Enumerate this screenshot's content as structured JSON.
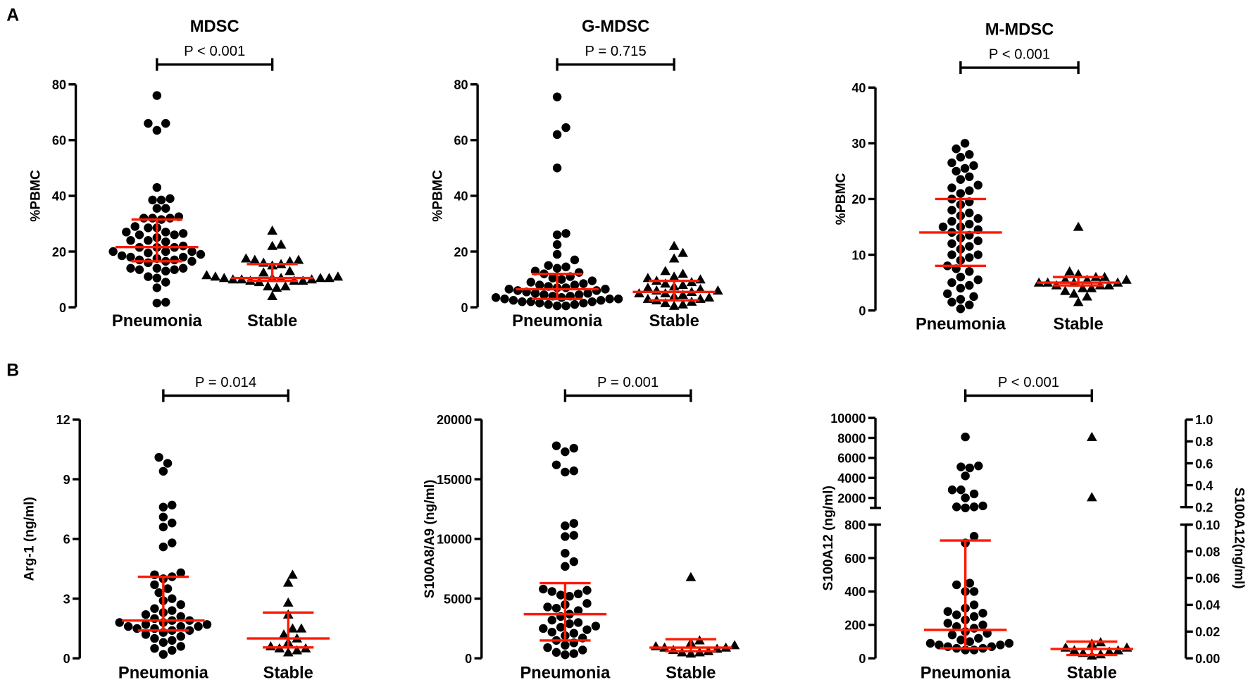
{
  "panel_labels": [
    "A",
    "B"
  ],
  "colors": {
    "points": "#000000",
    "summary": "#ff1a00",
    "axis": "#000000"
  },
  "chart_data": [
    {
      "type": "scatter",
      "title": "MDSC",
      "p_label": "P < 0.001",
      "ylabel": "%PBMC",
      "categories": [
        "Pneumonia",
        "Stable"
      ],
      "ylim": [
        0,
        80
      ],
      "yticks": [
        0,
        20,
        40,
        60,
        80
      ],
      "series": [
        {
          "name": "Pneumonia",
          "marker": "circle",
          "values": [
            76,
            66,
            66,
            63.5,
            43,
            39,
            38.5,
            38.5,
            35.5,
            35.5,
            32,
            32.5,
            32,
            31.5,
            32,
            29,
            28.5,
            28.5,
            27,
            27,
            26.5,
            26,
            26,
            25,
            24,
            24,
            23.5,
            22,
            21.5,
            21.5,
            21.5,
            20,
            20,
            20,
            19.5,
            19,
            18.5,
            18,
            18,
            17.5,
            17,
            17,
            16.5,
            16.5,
            16,
            14,
            14,
            14,
            13.5,
            13.5,
            13,
            11,
            10.5,
            9,
            7,
            1.5,
            1.8
          ],
          "median": 21.6,
          "q1": 16.5,
          "q3": 31.5
        },
        {
          "name": "Stable",
          "marker": "triangle",
          "values": [
            27.5,
            22.5,
            22,
            17.5,
            17,
            17,
            16.5,
            16,
            15.5,
            15,
            13,
            12.5,
            11.5,
            11,
            11,
            10.5,
            10.5,
            10.5,
            10.5,
            10.5,
            10,
            10,
            10,
            9.5,
            9.5,
            9.5,
            9,
            7.5,
            7.5,
            7,
            4
          ],
          "median": 10.5,
          "q1": 9.5,
          "q3": 15.5
        }
      ]
    },
    {
      "type": "scatter",
      "title": "G-MDSC",
      "p_label": "P = 0.715",
      "ylabel": "%PBMC",
      "categories": [
        "Pneumonia",
        "Stable"
      ],
      "ylim": [
        0,
        80
      ],
      "yticks": [
        0,
        20,
        40,
        60,
        80
      ],
      "series": [
        {
          "name": "Pneumonia",
          "marker": "circle",
          "values": [
            75.5,
            64.5,
            62,
            50,
            26.5,
            26,
            22.5,
            19,
            17,
            15,
            14.5,
            14,
            13,
            12.5,
            12,
            11,
            10.5,
            10,
            9.5,
            9,
            8.5,
            8,
            8,
            7.5,
            7,
            7,
            6.5,
            6.5,
            6,
            6,
            5.5,
            5,
            5,
            4.5,
            4.5,
            4,
            4,
            3.5,
            3.5,
            3,
            3,
            3,
            2.5,
            2.5,
            2,
            2,
            2,
            1.5,
            1.5,
            1,
            1,
            0.5,
            0.5
          ],
          "median": 6.5,
          "q1": 3,
          "q3": 12
        },
        {
          "name": "Stable",
          "marker": "triangle",
          "values": [
            22,
            19.5,
            17.5,
            13,
            12,
            11,
            10.5,
            10,
            9.5,
            9,
            8.5,
            8,
            7.5,
            7,
            6.5,
            6,
            6,
            5.5,
            5,
            5,
            4.5,
            4,
            3.5,
            3,
            3,
            2.5,
            2,
            1.5,
            1,
            0.5
          ],
          "median": 5.5,
          "q1": 2.5,
          "q3": 9.5
        }
      ]
    },
    {
      "type": "scatter",
      "title": "M-MDSC",
      "p_label": "P < 0.001",
      "ylabel": "%PBMC",
      "categories": [
        "Pneumonia",
        "Stable"
      ],
      "ylim": [
        0,
        40
      ],
      "yticks": [
        0,
        10,
        20,
        30,
        40
      ],
      "series": [
        {
          "name": "Pneumonia",
          "marker": "circle",
          "values": [
            30,
            29,
            28,
            27.5,
            26.5,
            26,
            25.5,
            25,
            24,
            23.5,
            22.5,
            22,
            21.5,
            21,
            20,
            19.5,
            19,
            18,
            17.5,
            17,
            16.5,
            16,
            15.5,
            15,
            15,
            14.5,
            14,
            13.5,
            13,
            12.5,
            12,
            11.5,
            11,
            10,
            10,
            9.5,
            9,
            8,
            7.5,
            7,
            6,
            5.5,
            5,
            4.5,
            4,
            3,
            2.5,
            2,
            1.5,
            1,
            0.3
          ],
          "median": 14,
          "q1": 8,
          "q3": 20
        },
        {
          "name": "Stable",
          "marker": "triangle",
          "values": [
            15,
            7,
            6.5,
            6,
            6,
            5.5,
            5.5,
            5.5,
            5,
            5,
            5,
            5,
            4.5,
            4.5,
            4.5,
            4,
            4,
            3.5,
            3,
            2.5,
            1.5
          ],
          "median": 5,
          "q1": 4.5,
          "q3": 6
        }
      ]
    },
    {
      "type": "scatter",
      "title": "",
      "p_label": "P = 0.014",
      "ylabel": "Arg-1 (ng/ml)",
      "categories": [
        "Pneumonia",
        "Stable"
      ],
      "ylim": [
        0,
        12
      ],
      "yticks": [
        0,
        3,
        6,
        9,
        12
      ],
      "series": [
        {
          "name": "Pneumonia",
          "marker": "circle",
          "values": [
            10.1,
            9.8,
            9.4,
            7.7,
            7.6,
            7.1,
            6.8,
            6.6,
            5.8,
            5.6,
            4.3,
            4.2,
            4.1,
            4.0,
            3.7,
            3.5,
            3.3,
            3.0,
            2.9,
            2.7,
            2.5,
            2.4,
            2.3,
            2.2,
            2.1,
            2.0,
            1.9,
            1.9,
            1.8,
            1.8,
            1.7,
            1.7,
            1.6,
            1.6,
            1.6,
            1.5,
            1.5,
            1.4,
            1.4,
            1.3,
            1.2,
            1.1,
            1.0,
            0.9,
            0.8,
            0.6,
            0.5,
            0.4,
            0.2
          ],
          "median": 1.9,
          "q1": 1.4,
          "q3": 4.1
        },
        {
          "name": "Stable",
          "marker": "triangle",
          "values": [
            4.2,
            3.8,
            2.8,
            2.2,
            1.5,
            1.5,
            1.2,
            1.0,
            0.8,
            0.6,
            0.5,
            0.5,
            0.4,
            0.3
          ],
          "median": 1.0,
          "q1": 0.55,
          "q3": 2.3
        }
      ]
    },
    {
      "type": "scatter",
      "title": "",
      "p_label": "P = 0.001",
      "ylabel": "S100A8/A9 (ng/ml)",
      "categories": [
        "Pneumonia",
        "Stable"
      ],
      "ylim": [
        0,
        20000
      ],
      "yticks": [
        0,
        5000,
        10000,
        15000,
        20000
      ],
      "series": [
        {
          "name": "Pneumonia",
          "marker": "circle",
          "values": [
            17800,
            17600,
            17300,
            16200,
            15700,
            15600,
            11300,
            11100,
            10300,
            10200,
            8800,
            8100,
            7700,
            5800,
            5700,
            5600,
            5400,
            5300,
            5200,
            4600,
            4500,
            4300,
            4200,
            4000,
            3700,
            3500,
            3200,
            3000,
            2900,
            2700,
            2600,
            2500,
            2400,
            2200,
            2100,
            1900,
            1700,
            1500,
            1300,
            1100,
            900,
            700,
            500,
            400,
            300
          ],
          "median": 3700,
          "q1": 1500,
          "q3": 6300
        },
        {
          "name": "Stable",
          "marker": "triangle",
          "values": [
            6800,
            1500,
            1300,
            1100,
            1000,
            900,
            900,
            800,
            700,
            600,
            500,
            500,
            400
          ],
          "median": 900,
          "q1": 600,
          "q3": 1600
        }
      ]
    },
    {
      "type": "scatter",
      "title": "",
      "p_label": "P < 0.001",
      "ylabel": "S100A12 (ng/ml)",
      "ylabel_right": "S100A12(ng/ml)",
      "categories": [
        "Pneumonia",
        "Stable"
      ],
      "ylim_lower": [
        0,
        800
      ],
      "ylim_upper": [
        1000,
        10000
      ],
      "yticks_lower": [
        0,
        200,
        400,
        600,
        800
      ],
      "yticks_upper": [
        2000,
        4000,
        6000,
        8000,
        10000
      ],
      "ylim_right_lower": [
        0,
        0.1
      ],
      "ylim_right_upper": [
        0.2,
        1.0
      ],
      "yticks_right_lower": [
        "0.00",
        "0.02",
        "0.04",
        "0.06",
        "0.08",
        "0.10"
      ],
      "yticks_right_upper": [
        "0.2",
        "0.4",
        "0.6",
        "0.8",
        "1.0"
      ],
      "series": [
        {
          "name": "Pneumonia",
          "marker": "circle",
          "axis": "left",
          "values": [
            8100,
            5200,
            5100,
            5000,
            4200,
            2800,
            2800,
            2400,
            2000,
            1200,
            1100,
            1100,
            1000,
            730,
            690,
            450,
            440,
            400,
            400,
            320,
            300,
            280,
            270,
            260,
            250,
            230,
            210,
            200,
            190,
            180,
            160,
            150,
            140,
            120,
            110,
            100,
            90,
            90,
            80,
            80,
            70,
            70,
            60,
            60,
            50,
            50
          ],
          "median": 170,
          "q1": 60,
          "q3": 705
        },
        {
          "name": "Stable",
          "marker": "triangle",
          "axis": "right",
          "values": [
            0.84,
            0.29,
            0.012,
            0.011,
            0.008,
            0.008,
            0.006,
            0.006,
            0.005,
            0.004,
            0.003,
            0.002
          ],
          "median": 0.007,
          "q1": 0.0025,
          "q3": 0.0125
        }
      ]
    }
  ]
}
